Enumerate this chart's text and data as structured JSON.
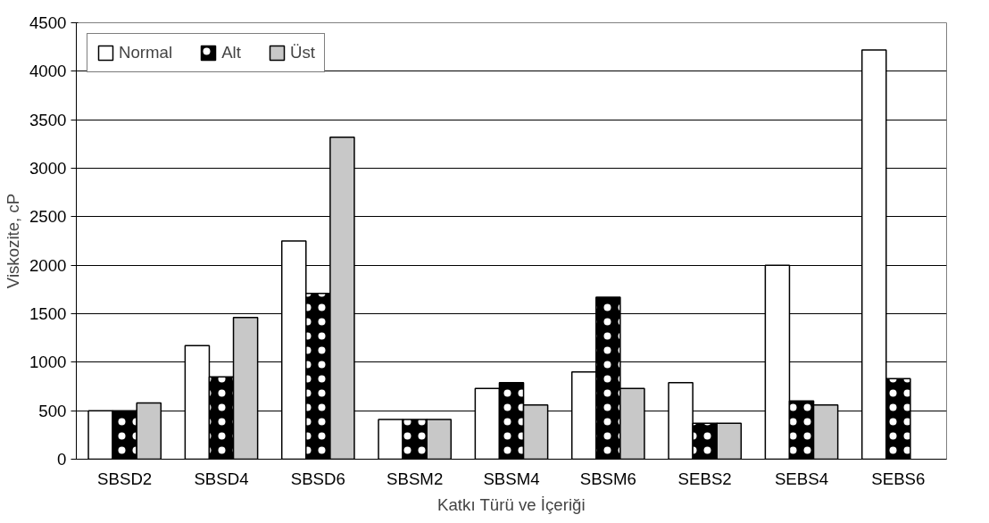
{
  "chart_data": {
    "type": "bar",
    "xlabel": "Katkı Türü ve İçeriği",
    "ylabel": "Viskozite, cP",
    "categories": [
      "SBSD2",
      "SBSD4",
      "SBSD6",
      "SBSM2",
      "SBSM4",
      "SBSM6",
      "SEBS2",
      "SEBS4",
      "SEBS6"
    ],
    "series": [
      {
        "name": "Normal",
        "color": "#ffffff",
        "values": [
          500,
          1170,
          2250,
          410,
          730,
          900,
          790,
          2000,
          4220
        ]
      },
      {
        "name": "Alt",
        "color": "#000000",
        "values": [
          500,
          850,
          1710,
          410,
          790,
          1670,
          370,
          600,
          830
        ]
      },
      {
        "name": "Üst",
        "color": "#c8c8c8",
        "values": [
          580,
          1460,
          3320,
          410,
          560,
          730,
          370,
          560,
          null
        ]
      }
    ],
    "ylim": [
      0,
      4500
    ],
    "yticks": [
      0,
      500,
      1000,
      1500,
      2000,
      2500,
      3000,
      3500,
      4000,
      4500
    ],
    "grid": "y",
    "legend": "top left"
  }
}
